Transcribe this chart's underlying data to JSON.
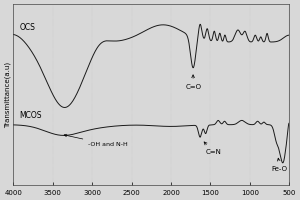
{
  "ylabel": "Transmittance(a.u)",
  "line_color": "#1a1a1a",
  "background_color": "#d8d8d8",
  "label_OCS": "OCS",
  "label_MCOS": "MCOS",
  "label_CeqO": "C=O",
  "label_CeqN": "C=N",
  "label_OH_NH": "-OH and N-H",
  "label_FeO": "Fe-O"
}
